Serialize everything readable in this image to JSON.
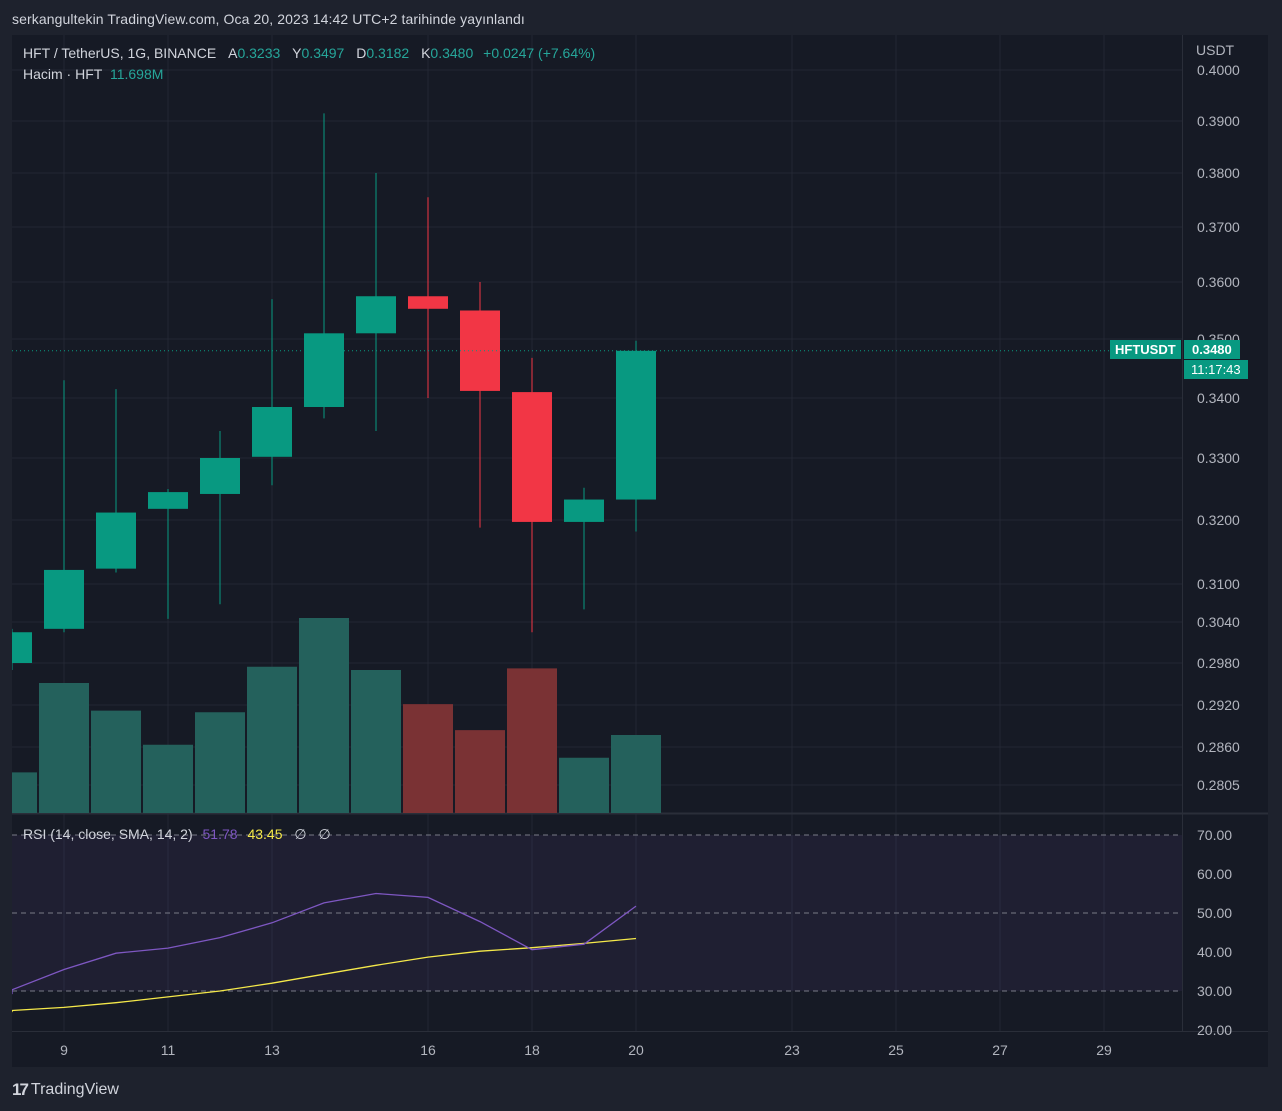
{
  "caption": "serkangultekin TradingView.com, Oca 20, 2023 14:42 UTC+2 tarihinde yayınlandı",
  "legend": {
    "symbol": "HFT / TetherUS, 1G, BINANCE",
    "open_key": "A",
    "open": "0.3233",
    "high_key": "Y",
    "high": "0.3497",
    "low_key": "D",
    "low": "0.3182",
    "close_key": "K",
    "close": "0.3480",
    "change": "+0.0247 (+7.64%)",
    "volume_label": "Hacim · HFT",
    "volume_value": "11.698M"
  },
  "rsi_legend": {
    "label": "RSI (14, close, SMA, 14, 2)",
    "rsi": "51.78",
    "sma": "43.45",
    "na1": "∅",
    "na2": "∅"
  },
  "price_tag": {
    "symbol": "HFTUSDT",
    "price": "0.3480",
    "countdown": "11:17:43"
  },
  "brand": {
    "logo": "17",
    "name": "TradingView"
  },
  "colors": {
    "up": "#089981",
    "down": "#f23645",
    "vol_up": "#24615c",
    "vol_down": "#7a3234",
    "rsi": "#7e57c2",
    "rsi_sma": "#f5e94a",
    "bg": "#161a25"
  },
  "chart_data": {
    "type": "candlestick",
    "currency": "USDT",
    "y_ticks": [
      "0.4000",
      "0.3900",
      "0.3800",
      "0.3700",
      "0.3600",
      "0.3500",
      "0.3400",
      "0.3300",
      "0.3200",
      "0.3100",
      "0.3040",
      "0.2980",
      "0.2920",
      "0.2860",
      "0.2805"
    ],
    "x_ticks": [
      {
        "day": 9,
        "label": "9"
      },
      {
        "day": 11,
        "label": "11"
      },
      {
        "day": 13,
        "label": "13"
      },
      {
        "day": 16,
        "label": "16"
      },
      {
        "day": 18,
        "label": "18"
      },
      {
        "day": 20,
        "label": "20"
      },
      {
        "day": 23,
        "label": "23"
      },
      {
        "day": 25,
        "label": "25"
      },
      {
        "day": 27,
        "label": "27"
      },
      {
        "day": 29,
        "label": "29"
      }
    ],
    "candles": [
      {
        "day": 8,
        "o": 0.298,
        "h": 0.303,
        "l": 0.297,
        "c": 0.3025
      },
      {
        "day": 9,
        "o": 0.303,
        "h": 0.343,
        "l": 0.3025,
        "c": 0.3122
      },
      {
        "day": 10,
        "o": 0.3124,
        "h": 0.3415,
        "l": 0.3118,
        "c": 0.3212
      },
      {
        "day": 11,
        "o": 0.3218,
        "h": 0.325,
        "l": 0.3045,
        "c": 0.3245
      },
      {
        "day": 12,
        "o": 0.3242,
        "h": 0.3345,
        "l": 0.3068,
        "c": 0.33
      },
      {
        "day": 13,
        "o": 0.3302,
        "h": 0.357,
        "l": 0.3256,
        "c": 0.3385
      },
      {
        "day": 14,
        "o": 0.3385,
        "h": 0.3915,
        "l": 0.3366,
        "c": 0.351
      },
      {
        "day": 15,
        "o": 0.351,
        "h": 0.38,
        "l": 0.3345,
        "c": 0.3575
      },
      {
        "day": 16,
        "o": 0.3575,
        "h": 0.3755,
        "l": 0.34,
        "c": 0.3553
      },
      {
        "day": 17,
        "o": 0.355,
        "h": 0.36,
        "l": 0.3188,
        "c": 0.3412
      },
      {
        "day": 18,
        "o": 0.341,
        "h": 0.3468,
        "l": 0.3025,
        "c": 0.3197
      },
      {
        "day": 19,
        "o": 0.3197,
        "h": 0.3252,
        "l": 0.306,
        "c": 0.3233
      },
      {
        "day": 20,
        "o": 0.3233,
        "h": 0.3497,
        "l": 0.3182,
        "c": 0.348
      }
    ],
    "volume": [
      2.5,
      8.0,
      6.3,
      4.2,
      6.2,
      9.0,
      12.0,
      8.8,
      6.7,
      5.1,
      8.9,
      3.4,
      4.8
    ],
    "current_price": 0.348,
    "rsi_ticks": [
      "70.00",
      "60.00",
      "50.00",
      "40.00",
      "30.00",
      "20.00"
    ],
    "rsi_bands": [
      30,
      50,
      70
    ],
    "rsi": [
      {
        "day": 8,
        "v": 30.3
      },
      {
        "day": 9,
        "v": 35.5
      },
      {
        "day": 10,
        "v": 39.7
      },
      {
        "day": 11,
        "v": 41.0
      },
      {
        "day": 12,
        "v": 43.7
      },
      {
        "day": 13,
        "v": 47.5
      },
      {
        "day": 14,
        "v": 52.6
      },
      {
        "day": 15,
        "v": 55.0
      },
      {
        "day": 16,
        "v": 54.0
      },
      {
        "day": 17,
        "v": 47.8
      },
      {
        "day": 18,
        "v": 40.6
      },
      {
        "day": 19,
        "v": 42.0
      },
      {
        "day": 20,
        "v": 51.78
      }
    ],
    "rsi_sma": [
      {
        "day": 8,
        "v": 25.0
      },
      {
        "day": 9,
        "v": 25.8
      },
      {
        "day": 10,
        "v": 27.0
      },
      {
        "day": 11,
        "v": 28.5
      },
      {
        "day": 12,
        "v": 30.0
      },
      {
        "day": 13,
        "v": 32.0
      },
      {
        "day": 14,
        "v": 34.3
      },
      {
        "day": 15,
        "v": 36.6
      },
      {
        "day": 16,
        "v": 38.7
      },
      {
        "day": 17,
        "v": 40.2
      },
      {
        "day": 18,
        "v": 41.1
      },
      {
        "day": 19,
        "v": 42.2
      },
      {
        "day": 20,
        "v": 43.45
      }
    ]
  }
}
